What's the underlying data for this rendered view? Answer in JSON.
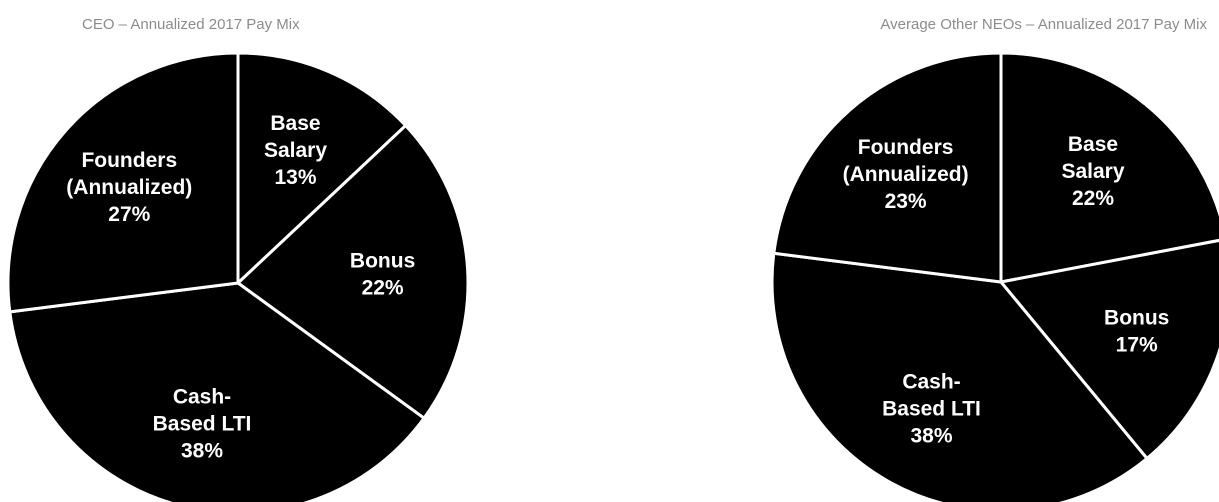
{
  "chart_data": [
    {
      "type": "pie",
      "title": "CEO – Annualized 2017 Pay Mix",
      "slices": [
        {
          "label": [
            "Base",
            "Salary",
            "13%"
          ],
          "category": "Base Salary",
          "value": 13
        },
        {
          "label": [
            "Bonus",
            "22%"
          ],
          "category": "Bonus",
          "value": 22
        },
        {
          "label": [
            "Cash-",
            "Based LTI",
            "38%"
          ],
          "category": "Cash-Based LTI",
          "value": 38
        },
        {
          "label": [
            "Founders",
            "(Annualized)",
            "27%"
          ],
          "category": "Founders (Annualized)",
          "value": 27
        }
      ],
      "fill_color": "#000000",
      "edge_color": "#ffffff"
    },
    {
      "type": "pie",
      "title": "Average Other NEOs – Annualized 2017 Pay Mix",
      "slices": [
        {
          "label": [
            "Base",
            "Salary",
            "22%"
          ],
          "category": "Base Salary",
          "value": 22
        },
        {
          "label": [
            "Bonus",
            "17%"
          ],
          "category": "Bonus",
          "value": 17
        },
        {
          "label": [
            "Cash-",
            "Based LTI",
            "38%"
          ],
          "category": "Cash-Based LTI",
          "value": 38
        },
        {
          "label": [
            "Founders",
            "(Annualized)",
            "23%"
          ],
          "category": "Founders (Annualized)",
          "value": 23
        }
      ],
      "fill_color": "#000000",
      "edge_color": "#ffffff"
    }
  ]
}
